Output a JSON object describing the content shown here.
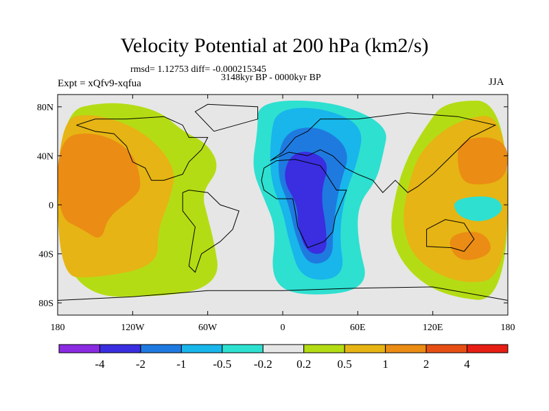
{
  "chart_data": {
    "type": "heatmap",
    "title": "Velocity Potential at 200 hPa (km2/s)",
    "stats_line": "rmsd= 1.12753 diff= -0.000215345",
    "period_line": "3148kyr BP - 0000kyr BP",
    "left_label": "Expt = xQfv9-xqfua",
    "right_label": "JJA",
    "xlim": [
      -180,
      180
    ],
    "ylim": [
      -90,
      90
    ],
    "x_ticks": [
      {
        "value": -180,
        "label": "180"
      },
      {
        "value": -120,
        "label": "120W"
      },
      {
        "value": -60,
        "label": "60W"
      },
      {
        "value": 0,
        "label": "0"
      },
      {
        "value": 60,
        "label": "60E"
      },
      {
        "value": 120,
        "label": "120E"
      },
      {
        "value": 180,
        "label": "180"
      }
    ],
    "y_ticks": [
      {
        "value": 80,
        "label": "80N"
      },
      {
        "value": 40,
        "label": "40N"
      },
      {
        "value": 0,
        "label": "0"
      },
      {
        "value": -40,
        "label": "40S"
      },
      {
        "value": -80,
        "label": "80S"
      }
    ],
    "colorbar": {
      "colors": [
        "#8a2be2",
        "#3a2ee0",
        "#1f7ae0",
        "#18b6ea",
        "#2ee0d0",
        "#e6e6e6",
        "#b4dc14",
        "#e6b414",
        "#eb8c14",
        "#e65014",
        "#e61e14"
      ],
      "labels": [
        "-4",
        "-2",
        "-1",
        "-0.5",
        "-0.2",
        "0.2",
        "0.5",
        "1",
        "2",
        "4"
      ]
    },
    "regions": [
      {
        "name": "pacific-positive",
        "level": 0.5,
        "color": "#b4dc14",
        "points": [
          [
            -180,
            75
          ],
          [
            -140,
            85
          ],
          [
            -100,
            78
          ],
          [
            -80,
            60
          ],
          [
            -60,
            50
          ],
          [
            -50,
            30
          ],
          [
            -65,
            10
          ],
          [
            -60,
            -10
          ],
          [
            -55,
            -30
          ],
          [
            -50,
            -60
          ],
          [
            -80,
            -75
          ],
          [
            -180,
            -75
          ]
        ]
      },
      {
        "name": "pacific-positive-core",
        "level": 1,
        "color": "#e6b414",
        "points": [
          [
            -180,
            70
          ],
          [
            -150,
            75
          ],
          [
            -110,
            60
          ],
          [
            -85,
            30
          ],
          [
            -90,
            5
          ],
          [
            -100,
            -20
          ],
          [
            -100,
            -50
          ],
          [
            -150,
            -60
          ],
          [
            -180,
            -58
          ]
        ]
      },
      {
        "name": "pacific-max",
        "level": 2,
        "color": "#eb8c14",
        "points": [
          [
            -180,
            55
          ],
          [
            -150,
            60
          ],
          [
            -120,
            45
          ],
          [
            -112,
            15
          ],
          [
            -120,
            5
          ],
          [
            -140,
            -10
          ],
          [
            -145,
            -30
          ],
          [
            -160,
            -20
          ],
          [
            -180,
            -10
          ]
        ]
      },
      {
        "name": "africa-negative",
        "level": -0.2,
        "color": "#2ee0d0",
        "points": [
          [
            -20,
            85
          ],
          [
            40,
            85
          ],
          [
            85,
            65
          ],
          [
            80,
            40
          ],
          [
            75,
            20
          ],
          [
            60,
            0
          ],
          [
            60,
            -30
          ],
          [
            70,
            -70
          ],
          [
            10,
            -75
          ],
          [
            -10,
            -60
          ],
          [
            -5,
            -20
          ],
          [
            -15,
            5
          ],
          [
            -25,
            30
          ],
          [
            -20,
            60
          ]
        ]
      },
      {
        "name": "africa-negative-inner",
        "level": -0.5,
        "color": "#18b6ea",
        "points": [
          [
            -5,
            78
          ],
          [
            30,
            80
          ],
          [
            65,
            65
          ],
          [
            60,
            35
          ],
          [
            50,
            10
          ],
          [
            45,
            -25
          ],
          [
            50,
            -60
          ],
          [
            15,
            -62
          ],
          [
            5,
            -30
          ],
          [
            0,
            -5
          ],
          [
            -10,
            20
          ],
          [
            -10,
            55
          ]
        ]
      },
      {
        "name": "africa-negative-core",
        "level": -1,
        "color": "#1f7ae0",
        "points": [
          [
            0,
            60
          ],
          [
            30,
            65
          ],
          [
            55,
            45
          ],
          [
            45,
            15
          ],
          [
            40,
            -20
          ],
          [
            40,
            -45
          ],
          [
            20,
            -50
          ],
          [
            10,
            -25
          ],
          [
            5,
            0
          ],
          [
            -5,
            25
          ]
        ]
      },
      {
        "name": "africa-min",
        "level": -2,
        "color": "#3a2ee0",
        "points": [
          [
            5,
            40
          ],
          [
            20,
            45
          ],
          [
            38,
            35
          ],
          [
            30,
            10
          ],
          [
            35,
            -20
          ],
          [
            35,
            -40
          ],
          [
            20,
            -40
          ],
          [
            12,
            -20
          ],
          [
            12,
            0
          ],
          [
            0,
            20
          ]
        ]
      },
      {
        "name": "indopacific-positive",
        "level": 0.5,
        "color": "#b4dc14",
        "points": [
          [
            130,
            85
          ],
          [
            180,
            85
          ],
          [
            180,
            -80
          ],
          [
            130,
            -75
          ],
          [
            100,
            -55
          ],
          [
            85,
            -25
          ],
          [
            90,
            10
          ],
          [
            100,
            40
          ],
          [
            115,
            65
          ]
        ]
      },
      {
        "name": "indopacific-positive-core",
        "level": 1,
        "color": "#e6b414",
        "points": [
          [
            140,
            70
          ],
          [
            180,
            75
          ],
          [
            180,
            -60
          ],
          [
            140,
            -65
          ],
          [
            105,
            -45
          ],
          [
            95,
            -15
          ],
          [
            100,
            15
          ],
          [
            110,
            45
          ]
        ]
      },
      {
        "name": "indopacific-max",
        "level": 2,
        "color": "#eb8c14",
        "points": [
          [
            140,
            55
          ],
          [
            180,
            55
          ],
          [
            180,
            20
          ],
          [
            150,
            15
          ],
          [
            140,
            25
          ]
        ]
      },
      {
        "name": "south-indian-max",
        "level": 2,
        "color": "#eb8c14",
        "points": [
          [
            130,
            -25
          ],
          [
            160,
            -20
          ],
          [
            170,
            -40
          ],
          [
            140,
            -48
          ]
        ]
      },
      {
        "name": "west-pacific-negative",
        "level": -0.2,
        "color": "#2ee0d0",
        "points": [
          [
            135,
            5
          ],
          [
            170,
            8
          ],
          [
            178,
            -5
          ],
          [
            160,
            -15
          ],
          [
            140,
            -10
          ]
        ]
      }
    ],
    "coastlines": [
      [
        [
          -165,
          65
        ],
        [
          -150,
          70
        ],
        [
          -125,
          70
        ],
        [
          -95,
          72
        ],
        [
          -80,
          65
        ],
        [
          -75,
          55
        ],
        [
          -60,
          55
        ],
        [
          -65,
          45
        ],
        [
          -75,
          35
        ],
        [
          -80,
          25
        ],
        [
          -95,
          20
        ],
        [
          -105,
          20
        ],
        [
          -110,
          30
        ],
        [
          -120,
          35
        ],
        [
          -125,
          48
        ],
        [
          -135,
          58
        ],
        [
          -150,
          60
        ],
        [
          -165,
          65
        ]
      ],
      [
        [
          -80,
          10
        ],
        [
          -75,
          12
        ],
        [
          -60,
          10
        ],
        [
          -50,
          0
        ],
        [
          -35,
          -5
        ],
        [
          -40,
          -20
        ],
        [
          -50,
          -30
        ],
        [
          -65,
          -40
        ],
        [
          -70,
          -55
        ],
        [
          -75,
          -50
        ],
        [
          -72,
          -30
        ],
        [
          -70,
          -18
        ],
        [
          -80,
          -5
        ],
        [
          -80,
          10
        ]
      ],
      [
        [
          -15,
          30
        ],
        [
          -5,
          36
        ],
        [
          10,
          37
        ],
        [
          30,
          32
        ],
        [
          33,
          28
        ],
        [
          43,
          12
        ],
        [
          51,
          12
        ],
        [
          42,
          -10
        ],
        [
          40,
          -22
        ],
        [
          33,
          -30
        ],
        [
          20,
          -35
        ],
        [
          12,
          -18
        ],
        [
          10,
          -5
        ],
        [
          8,
          5
        ],
        [
          -5,
          5
        ],
        [
          -15,
          12
        ],
        [
          -17,
          20
        ],
        [
          -15,
          30
        ]
      ],
      [
        [
          -10,
          36
        ],
        [
          0,
          43
        ],
        [
          10,
          55
        ],
        [
          20,
          60
        ],
        [
          30,
          70
        ],
        [
          60,
          70
        ],
        [
          100,
          75
        ],
        [
          140,
          72
        ],
        [
          170,
          65
        ],
        [
          150,
          55
        ],
        [
          140,
          45
        ],
        [
          130,
          35
        ],
        [
          120,
          25
        ],
        [
          108,
          15
        ],
        [
          100,
          10
        ],
        [
          90,
          20
        ],
        [
          80,
          10
        ],
        [
          72,
          20
        ],
        [
          60,
          25
        ],
        [
          50,
          30
        ],
        [
          40,
          40
        ],
        [
          30,
          45
        ],
        [
          20,
          40
        ],
        [
          5,
          43
        ],
        [
          -10,
          36
        ]
      ],
      [
        [
          115,
          -20
        ],
        [
          130,
          -12
        ],
        [
          145,
          -15
        ],
        [
          153,
          -28
        ],
        [
          145,
          -38
        ],
        [
          135,
          -35
        ],
        [
          115,
          -34
        ],
        [
          115,
          -20
        ]
      ],
      [
        [
          -55,
          60
        ],
        [
          -20,
          70
        ],
        [
          -20,
          80
        ],
        [
          -60,
          82
        ],
        [
          -70,
          76
        ],
        [
          -55,
          60
        ]
      ],
      [
        [
          -180,
          -78
        ],
        [
          -120,
          -75
        ],
        [
          -60,
          -70
        ],
        [
          0,
          -70
        ],
        [
          60,
          -68
        ],
        [
          120,
          -67
        ],
        [
          180,
          -78
        ]
      ]
    ]
  }
}
